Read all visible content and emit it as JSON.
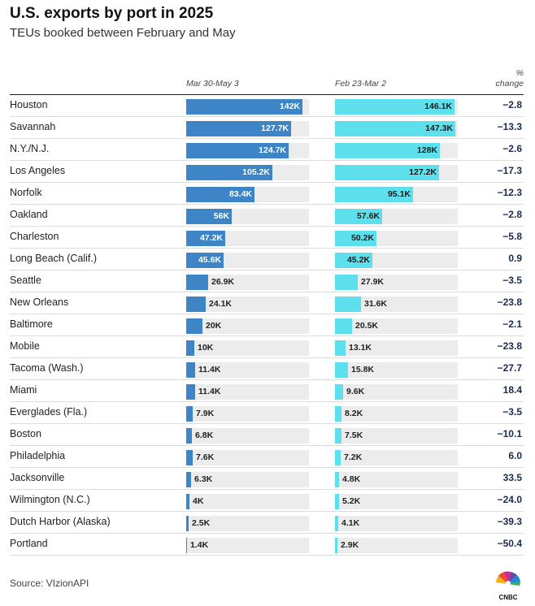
{
  "title": "U.S. exports by port in 2025",
  "subtitle": "TEUs booked between February and May",
  "source": "Source: VIzionAPI",
  "logo_text": "CNBC",
  "colors": {
    "series1": "#3d85c6",
    "series2": "#5ee0ec",
    "track": "#ececec",
    "pct": "#1a2b4c"
  },
  "chart_data": {
    "type": "bar",
    "orientation": "horizontal",
    "categories": [
      "Houston",
      "Savannah",
      "N.Y./N.J.",
      "Los Angeles",
      "Norfolk",
      "Oakland",
      "Charleston",
      "Long Beach (Calif.)",
      "Seattle",
      "New Orleans",
      "Baltimore",
      "Mobile",
      "Tacoma (Wash.)",
      "Miami",
      "Everglades (Fla.)",
      "Boston",
      "Philadelphia",
      "Jacksonville",
      "Wilmington (N.C.)",
      "Dutch Harbor (Alaska)",
      "Portland"
    ],
    "series": [
      {
        "name": "Mar 30-May 3",
        "values": [
          142000,
          127700,
          124700,
          105200,
          83400,
          56000,
          47200,
          45600,
          26900,
          24100,
          20000,
          10000,
          11400,
          11400,
          7900,
          6800,
          7600,
          6300,
          4000,
          2500,
          1400
        ],
        "labels": [
          "142K",
          "127.7K",
          "124.7K",
          "105.2K",
          "83.4K",
          "56K",
          "47.2K",
          "45.6K",
          "26.9K",
          "24.1K",
          "20K",
          "10K",
          "11.4K",
          "11.4K",
          "7.9K",
          "6.8K",
          "7.6K",
          "6.3K",
          "4K",
          "2.5K",
          "1.4K"
        ]
      },
      {
        "name": "Feb 23-Mar 2",
        "values": [
          146100,
          147300,
          128000,
          127200,
          95100,
          57600,
          50200,
          45200,
          27900,
          31600,
          20500,
          13100,
          15800,
          9600,
          8200,
          7500,
          7200,
          4800,
          5200,
          4100,
          2900
        ],
        "labels": [
          "146.1K",
          "147.3K",
          "128K",
          "127.2K",
          "95.1K",
          "57.6K",
          "50.2K",
          "45.2K",
          "27.9K",
          "31.6K",
          "20.5K",
          "13.1K",
          "15.8K",
          "9.6K",
          "8.2K",
          "7.5K",
          "7.2K",
          "4.8K",
          "5.2K",
          "4.1K",
          "2.9K"
        ]
      }
    ],
    "pct_change_header": [
      "%",
      "change"
    ],
    "pct_change": [
      "−2.8",
      "−13.3",
      "−2.6",
      "−17.3",
      "−12.3",
      "−2.8",
      "−5.8",
      "0.9",
      "−3.5",
      "−23.8",
      "−2.1",
      "−23.8",
      "−27.7",
      "18.4",
      "−3.5",
      "−10.1",
      "6.0",
      "33.5",
      "−24.0",
      "−39.3",
      "−50.4"
    ],
    "xlim": [
      0,
      150000
    ]
  }
}
